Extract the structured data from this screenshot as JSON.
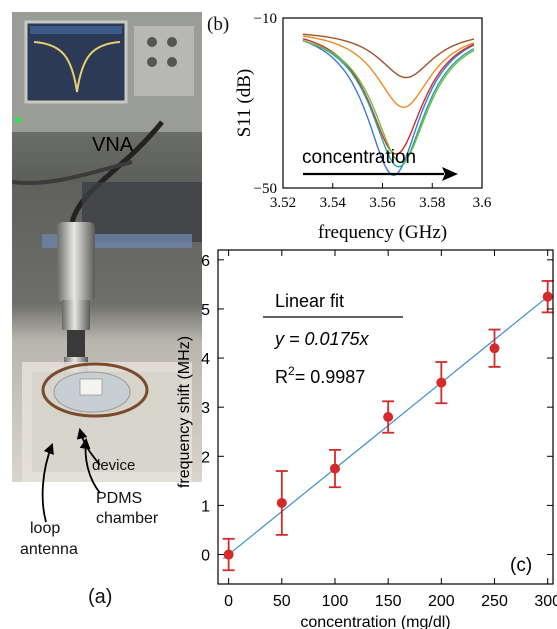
{
  "photo": {
    "vna_label": "VNA",
    "device_label": "device",
    "pdms_label_1": "PDMS",
    "pdms_label_2": "chamber",
    "loop_label_1": "loop",
    "loop_label_2": "antenna",
    "panel_label": "(a)"
  },
  "chart_data": [
    {
      "type": "line",
      "panel_label": "(b)",
      "xlabel": "frequency (GHz)",
      "ylabel": "S11 (dB)",
      "xlim": [
        3.52,
        3.6
      ],
      "ylim": [
        -50,
        -10
      ],
      "xticks": [
        "3.52",
        "3.54",
        "3.56",
        "3.58",
        "3.6"
      ],
      "yticks": [
        "−10",
        "−50"
      ],
      "annotation": "concentration",
      "series": [
        {
          "color": "#3f78d6",
          "center": 3.5645,
          "min": -47
        },
        {
          "color": "#d62a2a",
          "center": 3.5655,
          "min": -42
        },
        {
          "color": "#2aa3a3",
          "center": 3.5665,
          "min": -45
        },
        {
          "color": "#6cbf3f",
          "center": 3.5675,
          "min": -44
        },
        {
          "color": "#f08a24",
          "center": 3.5685,
          "min": -31
        },
        {
          "color": "#a0522d",
          "center": 3.5695,
          "min": -24
        }
      ]
    },
    {
      "type": "scatter",
      "panel_label": "(c)",
      "xlabel": "concentration (mg/dl)",
      "ylabel": "frequency shift (MHz)",
      "xlim": [
        -10,
        305
      ],
      "ylim": [
        -0.6,
        6.2
      ],
      "xticks": [
        "0",
        "50",
        "100",
        "150",
        "200",
        "250",
        "300"
      ],
      "yticks": [
        "0",
        "1",
        "2",
        "3",
        "4",
        "5",
        "6"
      ],
      "x": [
        0,
        50,
        100,
        150,
        200,
        250,
        300
      ],
      "y": [
        0.0,
        1.05,
        1.75,
        2.8,
        3.5,
        4.2,
        5.25
      ],
      "error": [
        0.32,
        0.65,
        0.38,
        0.32,
        0.42,
        0.38,
        0.32
      ],
      "point_color": "#d42a2a",
      "fit": {
        "slope": 0.0175,
        "color": "#3a8fd6"
      },
      "legend_title": "Linear fit",
      "legend_equation": "y = 0.0175x",
      "legend_r2_prefix": "R",
      "legend_r2_sup": "2",
      "legend_r2_value": "= 0.9987"
    }
  ]
}
